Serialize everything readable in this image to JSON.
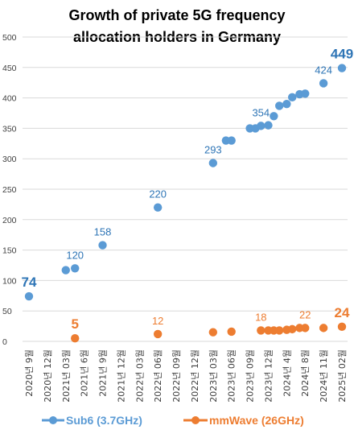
{
  "chart_data": {
    "type": "scatter",
    "title_lines": [
      "Growth of private 5G frequency",
      "allocation holders in Germany"
    ],
    "ylim": [
      0,
      500
    ],
    "yticks": [
      0,
      50,
      100,
      150,
      200,
      250,
      300,
      350,
      400,
      450,
      500
    ],
    "grid": true,
    "legend_position": "bottom",
    "x_tick_labels": [
      "2020년 9월",
      "2020년 12월",
      "2021년 03월",
      "2021년 6월",
      "2021년 9월",
      "2021년 12월",
      "2022년 03월",
      "2022년 06월",
      "2022년 09월",
      "2022년 12월",
      "2023년 03월",
      "2023년 06월",
      "2023년 09월",
      "2023년 12월",
      "2024년 4월",
      "2024년 8월",
      "2024년 11월",
      "2025년 02월"
    ],
    "series": [
      {
        "name": "Sub6 (3.7GHz)",
        "color": "#5b9bd5",
        "label_color": "#2e75b6",
        "points": [
          {
            "x": 0,
            "y": 74
          },
          {
            "x": 2,
            "y": 117
          },
          {
            "x": 2.5,
            "y": 120
          },
          {
            "x": 4,
            "y": 158
          },
          {
            "x": 7,
            "y": 220
          },
          {
            "x": 10,
            "y": 293
          },
          {
            "x": 10.7,
            "y": 330
          },
          {
            "x": 11,
            "y": 330
          },
          {
            "x": 12,
            "y": 350
          },
          {
            "x": 12.3,
            "y": 350
          },
          {
            "x": 12.6,
            "y": 354
          },
          {
            "x": 13,
            "y": 355
          },
          {
            "x": 13.3,
            "y": 370
          },
          {
            "x": 13.6,
            "y": 387
          },
          {
            "x": 14,
            "y": 390
          },
          {
            "x": 14.3,
            "y": 401
          },
          {
            "x": 14.7,
            "y": 406
          },
          {
            "x": 15,
            "y": 407
          },
          {
            "x": 16,
            "y": 424
          },
          {
            "x": 17,
            "y": 449
          }
        ],
        "data_labels": [
          {
            "x": 0,
            "y": 74,
            "text": "74",
            "big": true
          },
          {
            "x": 2.5,
            "y": 120,
            "text": "120"
          },
          {
            "x": 4,
            "y": 158,
            "text": "158"
          },
          {
            "x": 7,
            "y": 220,
            "text": "220"
          },
          {
            "x": 10,
            "y": 293,
            "text": "293"
          },
          {
            "x": 12.6,
            "y": 354,
            "text": "354"
          },
          {
            "x": 16,
            "y": 424,
            "text": "424"
          },
          {
            "x": 17,
            "y": 449,
            "text": "449",
            "big": true
          }
        ]
      },
      {
        "name": "mmWave (26GHz)",
        "color": "#ed7d31",
        "label_color": "#ed7d31",
        "points": [
          {
            "x": 2.5,
            "y": 5
          },
          {
            "x": 7,
            "y": 12
          },
          {
            "x": 10,
            "y": 15
          },
          {
            "x": 11,
            "y": 16
          },
          {
            "x": 12.6,
            "y": 18
          },
          {
            "x": 13,
            "y": 18
          },
          {
            "x": 13.3,
            "y": 18
          },
          {
            "x": 13.6,
            "y": 18
          },
          {
            "x": 14,
            "y": 19
          },
          {
            "x": 14.3,
            "y": 20
          },
          {
            "x": 14.7,
            "y": 22
          },
          {
            "x": 15,
            "y": 22
          },
          {
            "x": 16,
            "y": 22
          },
          {
            "x": 17,
            "y": 24
          }
        ],
        "data_labels": [
          {
            "x": 2.5,
            "y": 5,
            "text": "5",
            "big": true
          },
          {
            "x": 7,
            "y": 12,
            "text": "12"
          },
          {
            "x": 12.6,
            "y": 18,
            "text": "18"
          },
          {
            "x": 15,
            "y": 22,
            "text": "22"
          },
          {
            "x": 17,
            "y": 24,
            "text": "24",
            "big": true
          }
        ]
      }
    ]
  }
}
